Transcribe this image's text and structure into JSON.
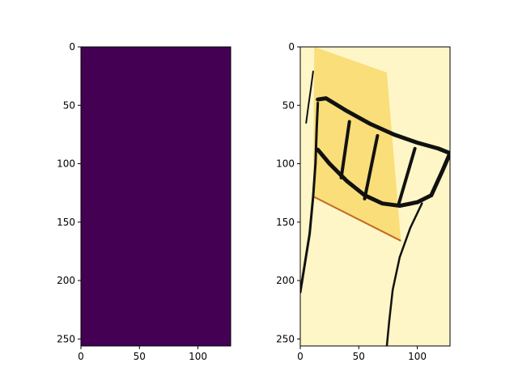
{
  "figure": {
    "background": "#ffffff"
  },
  "chart_data": [
    {
      "type": "heatmap",
      "panel": "left",
      "title": "",
      "xlabel": "",
      "ylabel": "",
      "xlim": [
        0,
        128
      ],
      "ylim": [
        256,
        0
      ],
      "y_inverted": true,
      "grid": false,
      "legend": "none",
      "xticks": [
        0,
        50,
        100
      ],
      "yticks": [
        0,
        50,
        100,
        150,
        200,
        250
      ],
      "colormap": "viridis",
      "description_values": "uniform constant field",
      "fill_color": "#440154"
    },
    {
      "type": "heatmap",
      "panel": "right",
      "title": "",
      "xlabel": "",
      "ylabel": "",
      "xlim": [
        0,
        128
      ],
      "ylim": [
        256,
        0
      ],
      "y_inverted": true,
      "grid": false,
      "legend": "none",
      "xticks": [
        0,
        50,
        100
      ],
      "yticks": [
        0,
        50,
        100,
        150,
        200,
        250
      ],
      "colormap": "inferno-like yellow",
      "background_color": "#fef6c6",
      "highlight_color": "#f9de7a",
      "ink_color": "#111111",
      "edge_color": "#c06a24",
      "highlight_polygon": [
        [
          12,
          0
        ],
        [
          74,
          22
        ],
        [
          86,
          166
        ],
        [
          11,
          128
        ]
      ],
      "strokes": [
        {
          "name": "left-tick-stroke",
          "points": [
            [
              5,
              65
            ],
            [
              7,
              50
            ],
            [
              9,
              36
            ],
            [
              11,
              21
            ]
          ],
          "width": 2
        },
        {
          "name": "left-border-stroke",
          "points": [
            [
              0,
              210
            ],
            [
              4,
              185
            ],
            [
              8,
              160
            ],
            [
              11,
              128
            ],
            [
              13,
              100
            ],
            [
              14,
              70
            ],
            [
              15,
              48
            ]
          ],
          "width": 3
        },
        {
          "name": "top-arc-stroke",
          "points": [
            [
              15,
              45
            ],
            [
              22,
              44
            ],
            [
              40,
              55
            ],
            [
              60,
              66
            ],
            [
              80,
              75
            ],
            [
              100,
              82
            ],
            [
              118,
              87
            ],
            [
              128,
              91
            ]
          ],
          "width": 5
        },
        {
          "name": "bottom-arc-stroke",
          "points": [
            [
              15,
              88
            ],
            [
              25,
              100
            ],
            [
              40,
              115
            ],
            [
              55,
              127
            ],
            [
              70,
              134
            ],
            [
              85,
              136
            ],
            [
              100,
              133
            ],
            [
              112,
              127
            ]
          ],
          "width": 5
        },
        {
          "name": "right-edge-stroke",
          "points": [
            [
              128,
              91
            ],
            [
              122,
              105
            ],
            [
              112,
              127
            ]
          ],
          "width": 5
        },
        {
          "name": "vertical-stroke-1",
          "points": [
            [
              42,
              64
            ],
            [
              35,
              112
            ]
          ],
          "width": 4
        },
        {
          "name": "vertical-stroke-2",
          "points": [
            [
              66,
              76
            ],
            [
              55,
              130
            ]
          ],
          "width": 4
        },
        {
          "name": "vertical-stroke-3",
          "points": [
            [
              98,
              87
            ],
            [
              84,
              135
            ]
          ],
          "width": 4
        },
        {
          "name": "lower-right-curve-stroke",
          "points": [
            [
              104,
              134
            ],
            [
              94,
              155
            ],
            [
              85,
              180
            ],
            [
              79,
              208
            ],
            [
              76,
              235
            ],
            [
              74,
              256
            ]
          ],
          "width": 2.5
        }
      ],
      "edge_line": [
        [
          11,
          128
        ],
        [
          86,
          166
        ]
      ]
    }
  ]
}
